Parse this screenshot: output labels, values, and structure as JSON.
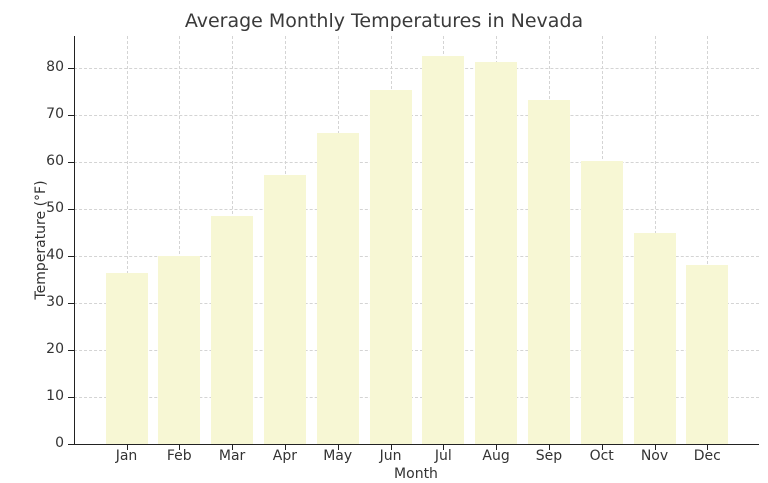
{
  "chart_data": {
    "type": "bar",
    "title": "Average Monthly Temperatures in Nevada",
    "xlabel": "Month",
    "ylabel": "Temperature (°F)",
    "categories": [
      "Jan",
      "Feb",
      "Mar",
      "Apr",
      "May",
      "Jun",
      "Jul",
      "Aug",
      "Sep",
      "Oct",
      "Nov",
      "Dec"
    ],
    "values": [
      36.3,
      40.1,
      48.5,
      57.3,
      66.1,
      75.4,
      82.5,
      81.2,
      73.1,
      60.2,
      45.0,
      38.1
    ],
    "ylim": [
      0,
      86.8
    ],
    "yticks": [
      0,
      10,
      20,
      30,
      40,
      50,
      60,
      70,
      80
    ],
    "grid": true,
    "bar_color": "#f7f7d4"
  }
}
